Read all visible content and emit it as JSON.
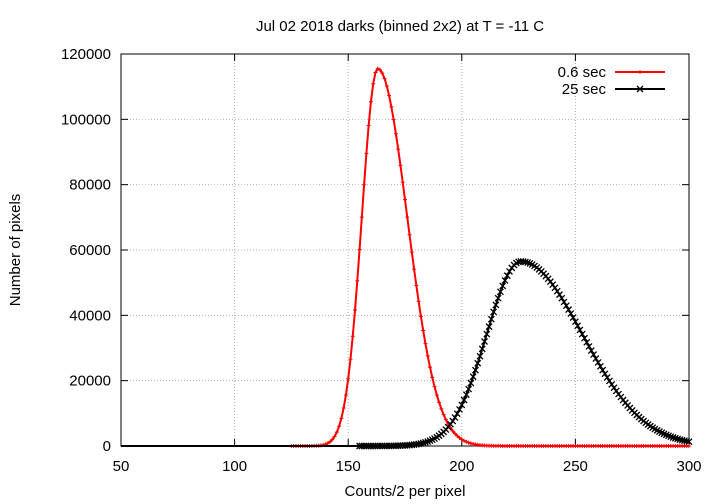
{
  "chart_data": {
    "type": "line",
    "title": "Jul 02 2018 darks (binned 2x2) at T = -11 C",
    "xlabel": "Counts/2 per pixel",
    "ylabel": "Number of pixels",
    "xlim": [
      50,
      300
    ],
    "ylim": [
      0,
      120000
    ],
    "xticks": [
      "50",
      "100",
      "150",
      "200",
      "250",
      "300"
    ],
    "yticks": [
      "0",
      "20000",
      "40000",
      "60000",
      "80000",
      "100000",
      "120000"
    ],
    "grid": true,
    "legend_position": "top-right",
    "series": [
      {
        "name": "0.6 sec",
        "color": "#ff0000",
        "marker": "plus",
        "curve": {
          "kind": "peak",
          "peak_x": 163,
          "peak_y": 115500,
          "sigma_left": 7,
          "sigma_right": 13,
          "start_x": 125,
          "end_x": 300
        }
      },
      {
        "name": "25 sec",
        "color": "#000000",
        "marker": "x-box",
        "curve": {
          "kind": "peak",
          "peak_x": 226,
          "peak_y": 56500,
          "sigma_left": 15,
          "sigma_right": 27,
          "start_x": 155,
          "end_x": 300
        }
      }
    ]
  }
}
